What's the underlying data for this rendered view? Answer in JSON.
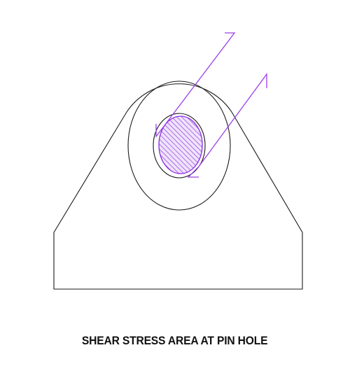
{
  "caption": "SHEAR STRESS AREA AT PIN HOLE",
  "colors": {
    "outline": "#1a1a1a",
    "shear_area": "#8a2be2",
    "hatch": "#9b4fe0",
    "leader": "#9b40e8"
  },
  "icons": {
    "pin_hole": "hatched-circle",
    "leaders": "zigzag-leader-lines"
  }
}
